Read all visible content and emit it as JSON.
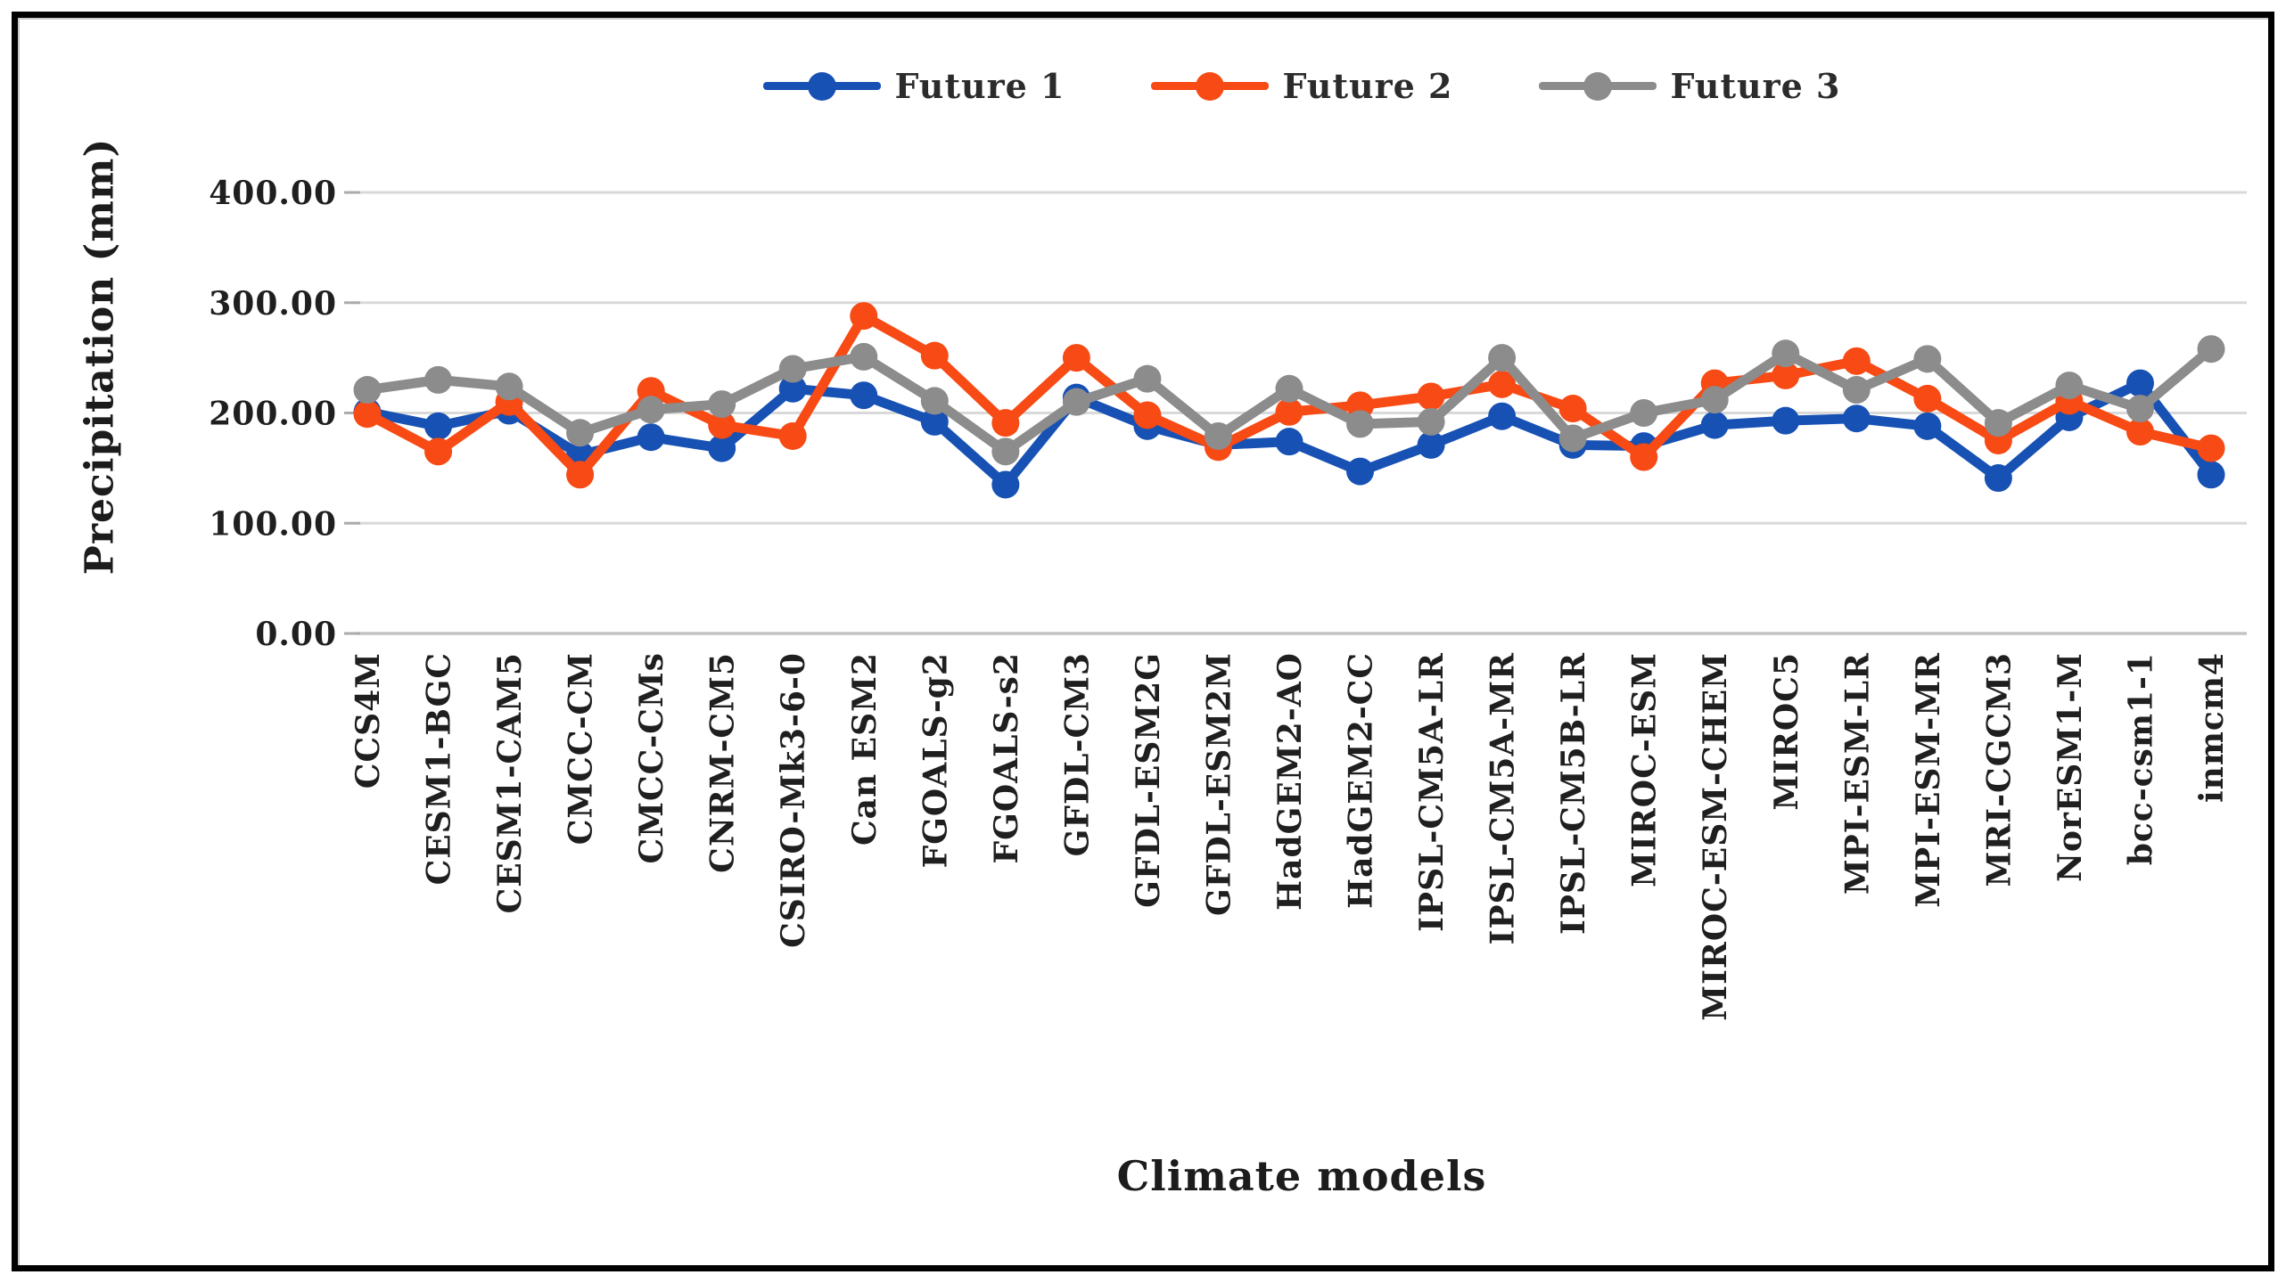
{
  "chart_data": {
    "type": "line",
    "title": "",
    "xlabel": "Climate models",
    "ylabel": "Precipitation (mm)",
    "ylim": [
      0,
      400
    ],
    "ytick_step": 100,
    "ytick_labels": [
      "0.00",
      "100.00",
      "200.00",
      "300.00",
      "400.00"
    ],
    "grid": true,
    "legend_position": "top-center",
    "marker": "circle",
    "categories": [
      "CCS4M",
      "CESM1-BGC",
      "CESM1-CAM5",
      "CMCC-CM",
      "CMCC-CMs",
      "CNRM-CM5",
      "CSIRO-Mk3-6-0",
      "Can ESM2",
      "FGOALS-g2",
      "FGOALS-s2",
      "GFDL-CM3",
      "GFDL-ESM2G",
      "GFDL-ESM2M",
      "HadGEM2-AO",
      "HadGEM2-CC",
      "IPSL-CM5A-LR",
      "IPSL-CM5A-MR",
      "IPSL-CM5B-LR",
      "MIROC-ESM",
      "MIROC-ESM-CHEM",
      "MIROC5",
      "MPI-ESM-LR",
      "MPI-ESM-MR",
      "MRI-CGCM3",
      "NorESM1-M",
      "bcc-csm1-1",
      "inmcm4"
    ],
    "series": [
      {
        "name": "Future 1",
        "color": "#1751B4",
        "values": [
          201,
          188,
          202,
          162,
          178,
          168,
          222,
          216,
          192,
          135,
          214,
          188,
          171,
          174,
          147,
          171,
          197,
          171,
          170,
          189,
          193,
          195,
          188,
          141,
          196,
          227,
          144
        ]
      },
      {
        "name": "Future 2",
        "color": "#F74A14",
        "values": [
          199,
          165,
          210,
          144,
          220,
          189,
          179,
          288,
          252,
          191,
          250,
          198,
          169,
          201,
          207,
          215,
          226,
          204,
          160,
          227,
          234,
          247,
          213,
          175,
          211,
          183,
          168
        ]
      },
      {
        "name": "Future 3",
        "color": "#8C8C8C",
        "values": [
          221,
          230,
          224,
          182,
          203,
          208,
          240,
          251,
          211,
          165,
          210,
          231,
          179,
          222,
          190,
          192,
          250,
          177,
          200,
          212,
          254,
          221,
          249,
          191,
          225,
          204,
          258
        ]
      }
    ],
    "colors": {
      "gridline": "#D9D9D9",
      "zero_axis": "#C3C3C3",
      "tick_mark": "#ABABAB",
      "text": "#1f1f1f",
      "frame_border": "#000000"
    }
  }
}
